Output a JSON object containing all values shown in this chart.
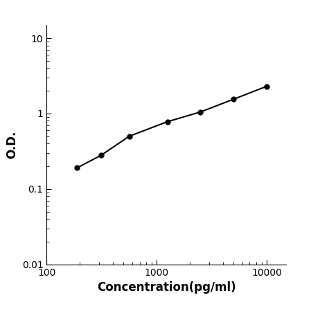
{
  "x_values": [
    188,
    313,
    563,
    1250,
    2500,
    5000,
    10000
  ],
  "y_values": [
    0.19,
    0.28,
    0.5,
    0.78,
    1.05,
    1.55,
    2.3
  ],
  "line_color": "#000000",
  "marker_color": "#000000",
  "marker_size": 5,
  "line_width": 1.5,
  "xlabel": "Concentration(pg/ml)",
  "ylabel": "O.D.",
  "xlim": [
    100,
    15000
  ],
  "ylim": [
    0.01,
    15
  ],
  "xlabel_fontsize": 12,
  "ylabel_fontsize": 12,
  "tick_fontsize": 10,
  "background_color": "#ffffff",
  "xticks": [
    100,
    1000,
    10000
  ],
  "xtick_labels": [
    "100",
    "1000",
    "10000"
  ],
  "yticks": [
    0.01,
    0.1,
    1,
    10
  ],
  "ytick_labels": [
    "0.01",
    "0.1",
    "1",
    "10"
  ]
}
